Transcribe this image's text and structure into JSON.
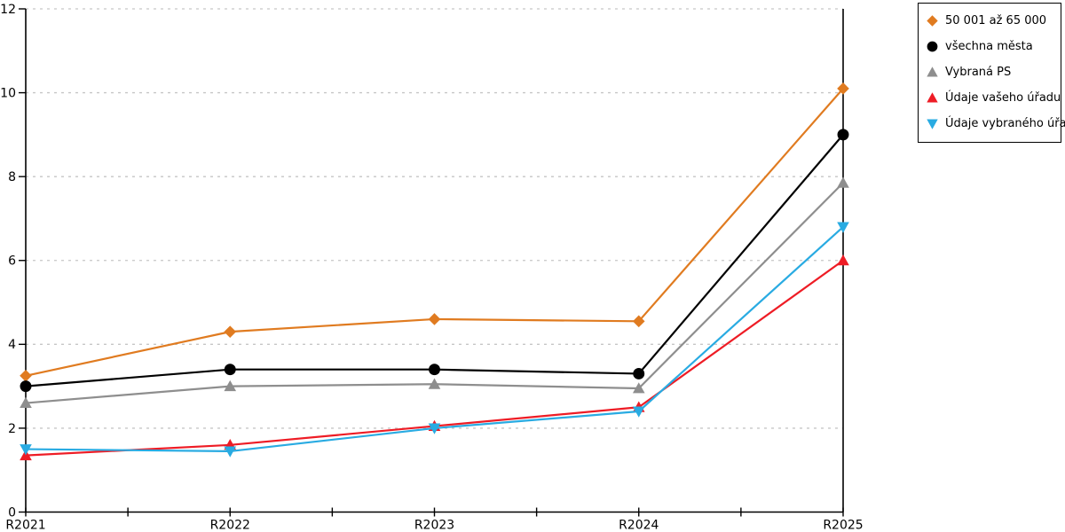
{
  "chart_data": {
    "type": "line",
    "title": "",
    "xlabel": "",
    "ylabel": "",
    "x_labels": [
      "R2021",
      "R2022",
      "R2023",
      "R2024",
      "R2025"
    ],
    "y_ticks": [
      0,
      2,
      4,
      6,
      8,
      10,
      12
    ],
    "ylim": [
      0,
      12
    ],
    "grid": "horizontal-dashed",
    "grid_color": "#c6c6c6",
    "axis_color": "#000000",
    "tick_label_color": "#000000",
    "legend_position": "top-right",
    "series": [
      {
        "name": "50 001 až 65 000",
        "marker": "diamond",
        "color": "#e07b20",
        "values": [
          3.25,
          4.3,
          4.6,
          4.55,
          10.1
        ]
      },
      {
        "name": "všechna města",
        "marker": "circle",
        "color": "#000000",
        "values": [
          3.0,
          3.4,
          3.4,
          3.3,
          9.0
        ]
      },
      {
        "name": "Vybraná PS",
        "marker": "triangle-up",
        "color": "#8e8e8e",
        "values": [
          2.6,
          3.0,
          3.05,
          2.95,
          7.85
        ]
      },
      {
        "name": "Údaje vašeho úřadu",
        "marker": "triangle-up",
        "color": "#ee1c25",
        "values": [
          1.35,
          1.6,
          2.05,
          2.5,
          6.0
        ]
      },
      {
        "name": "Údaje vybraného úřadu",
        "marker": "triangle-down",
        "color": "#29abe2",
        "values": [
          1.5,
          1.45,
          2.0,
          2.4,
          6.8
        ]
      }
    ]
  }
}
